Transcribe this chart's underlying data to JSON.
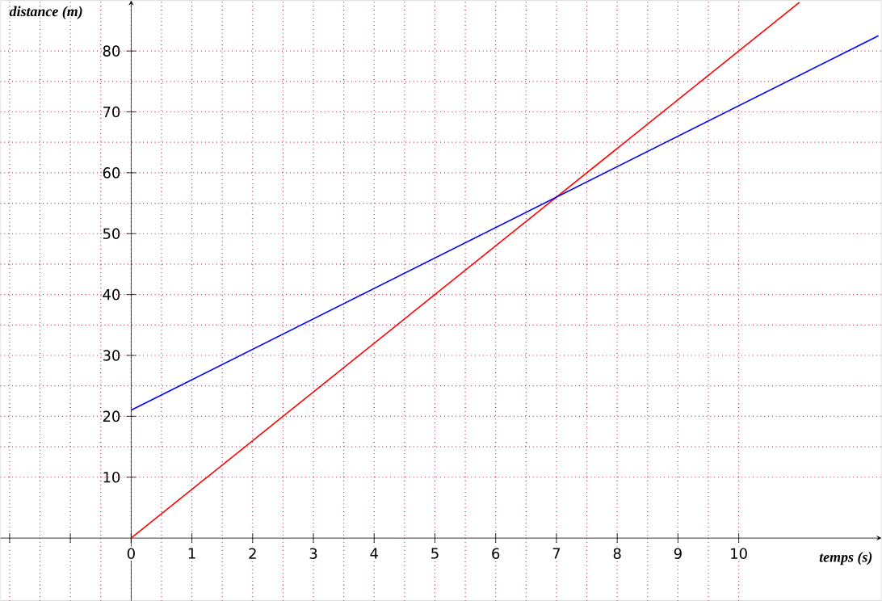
{
  "chart_data": {
    "type": "line",
    "xlabel": "temps (s)",
    "ylabel": "distance (m)",
    "xlim": [
      -2.15,
      12.35
    ],
    "ylim": [
      -10.3,
      88.3
    ],
    "xticks": [
      {
        "value": -2,
        "label": null
      },
      {
        "value": -1,
        "label": null
      },
      0,
      1,
      2,
      3,
      4,
      5,
      6,
      7,
      8,
      9,
      10
    ],
    "yticks": [
      10,
      20,
      30,
      40,
      50,
      60,
      70,
      80
    ],
    "grid": true,
    "marker": "none",
    "line_style": "solid",
    "series": [
      {
        "color": "#ff0000",
        "x": [
          0,
          11
        ],
        "values": [
          0,
          88
        ]
      },
      {
        "color": "#0000ff",
        "x": [
          0,
          12.3
        ],
        "values": [
          21,
          82.5
        ]
      }
    ]
  }
}
